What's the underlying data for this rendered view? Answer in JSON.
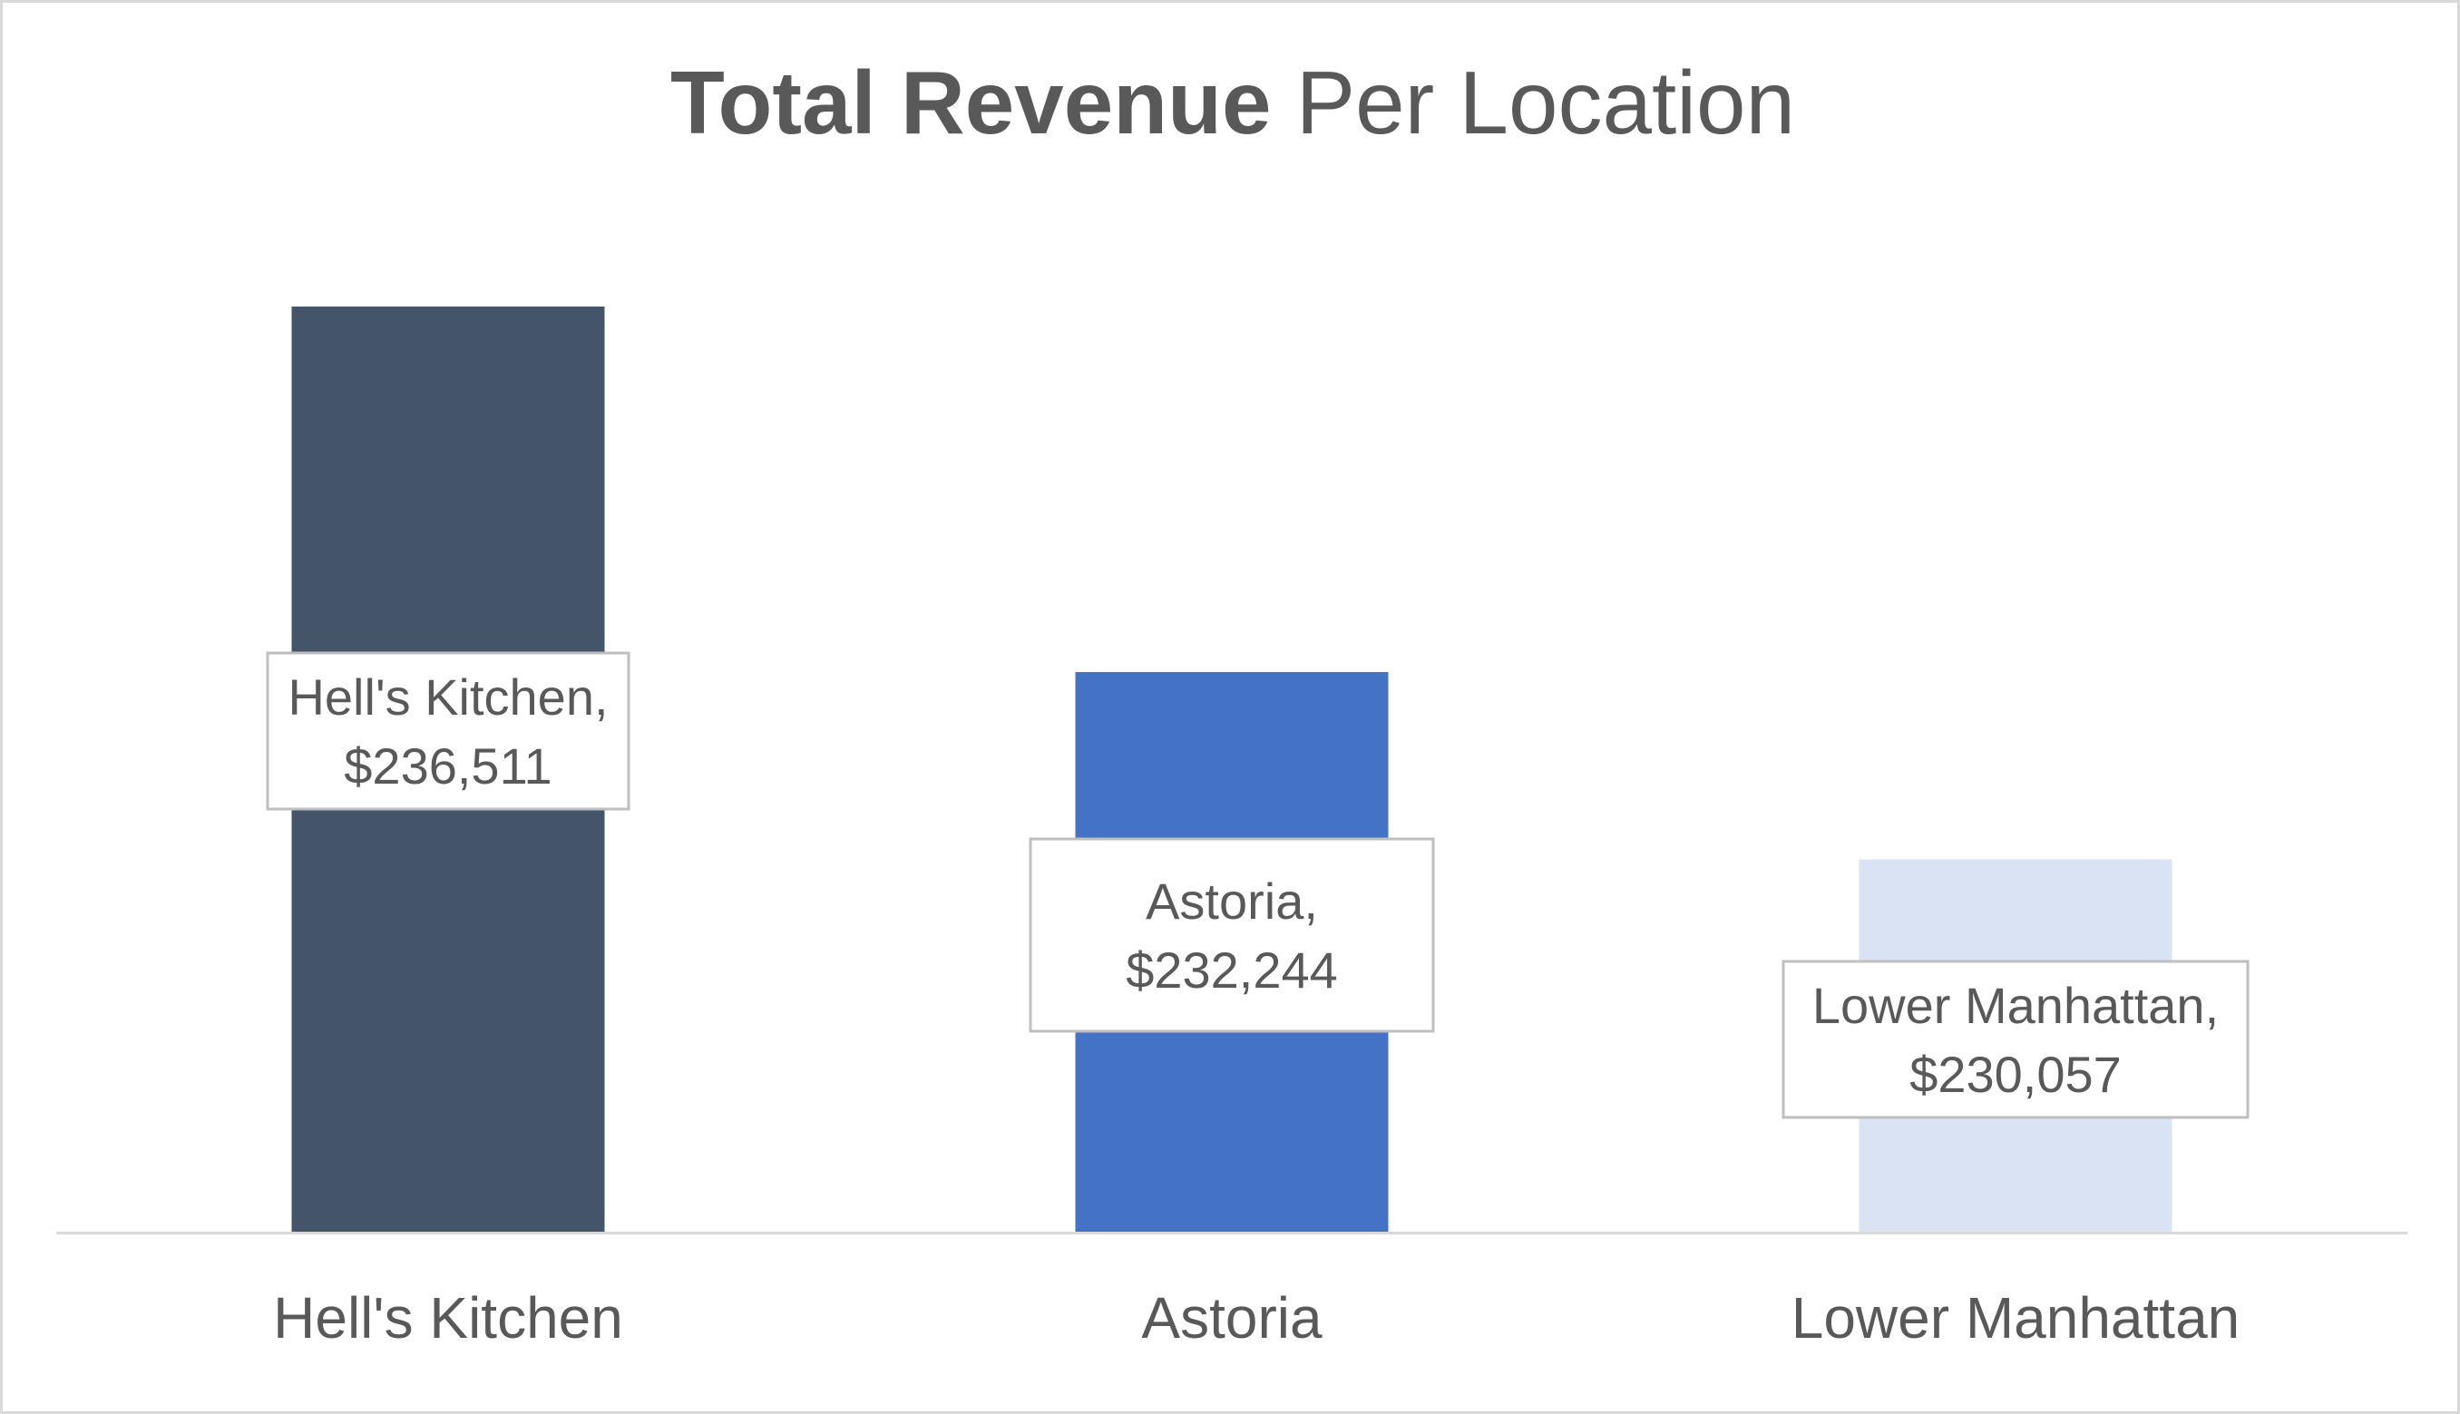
{
  "chart_data": {
    "type": "bar",
    "title_bold": "Total Revenue",
    "title_rest": "Per Location",
    "categories": [
      "Hell's Kitchen",
      "Astoria",
      "Lower Manhattan"
    ],
    "values": [
      236511,
      232244,
      230057
    ],
    "data_labels": [
      [
        "Hell's Kitchen,",
        "$236,511"
      ],
      [
        "Astoria,",
        "$232,244"
      ],
      [
        "Lower Manhattan,",
        "$230,057"
      ]
    ],
    "colors": [
      "#445469",
      "#4472c4",
      "#dae3f3"
    ],
    "ylim": [
      225700,
      237400
    ],
    "grid": false,
    "legend": "none",
    "xlabel": "",
    "ylabel": ""
  },
  "style": {
    "axis_color": "#d9d9d9",
    "label_box_border": "#bfbfbf",
    "text_color": "#595959"
  }
}
